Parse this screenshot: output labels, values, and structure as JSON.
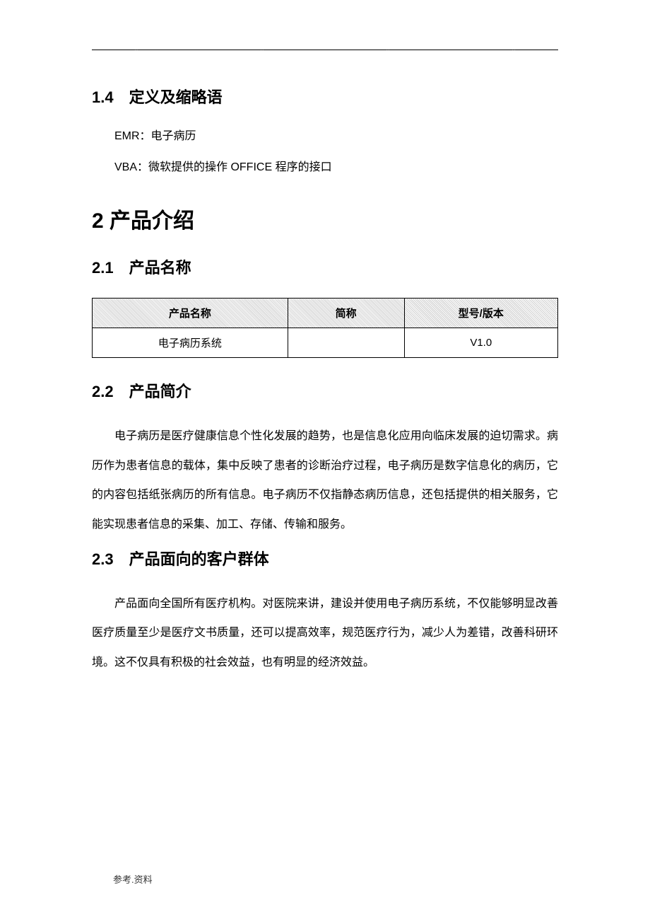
{
  "header": {
    "dots": [
      "..",
      "..",
      "..",
      ".."
    ]
  },
  "section_1_4": {
    "heading": "1.4　定义及缩略语",
    "definitions": [
      "EMR：电子病历",
      "VBA：微软提供的操作 OFFICE 程序的接口"
    ]
  },
  "section_2": {
    "heading": "2 产品介绍"
  },
  "section_2_1": {
    "heading": "2.1　产品名称",
    "table": {
      "columns": [
        "产品名称",
        "简称",
        "型号/版本"
      ],
      "rows": [
        [
          "电子病历系统",
          "",
          "V1.0"
        ]
      ]
    }
  },
  "section_2_2": {
    "heading": "2.2　产品简介",
    "paragraph": "电子病历是医疗健康信息个性化发展的趋势，也是信息化应用向临床发展的迫切需求。病历作为患者信息的载体，集中反映了患者的诊断治疗过程，电子病历是数字信息化的病历，它的内容包括纸张病历的所有信息。电子病历不仅指静态病历信息，还包括提供的相关服务，它能实现患者信息的采集、加工、存储、传输和服务。"
  },
  "section_2_3": {
    "heading": "2.3　产品面向的客户群体",
    "paragraph": "产品面向全国所有医疗机构。对医院来讲，建设并使用电子病历系统，不仅能够明显改善医疗质量至少是医疗文书质量，还可以提高效率，规范医疗行为，减少人为差错，改善科研环境。这不仅具有积极的社会效益，也有明显的经济效益。"
  },
  "footer": {
    "text": "参考.资料"
  }
}
